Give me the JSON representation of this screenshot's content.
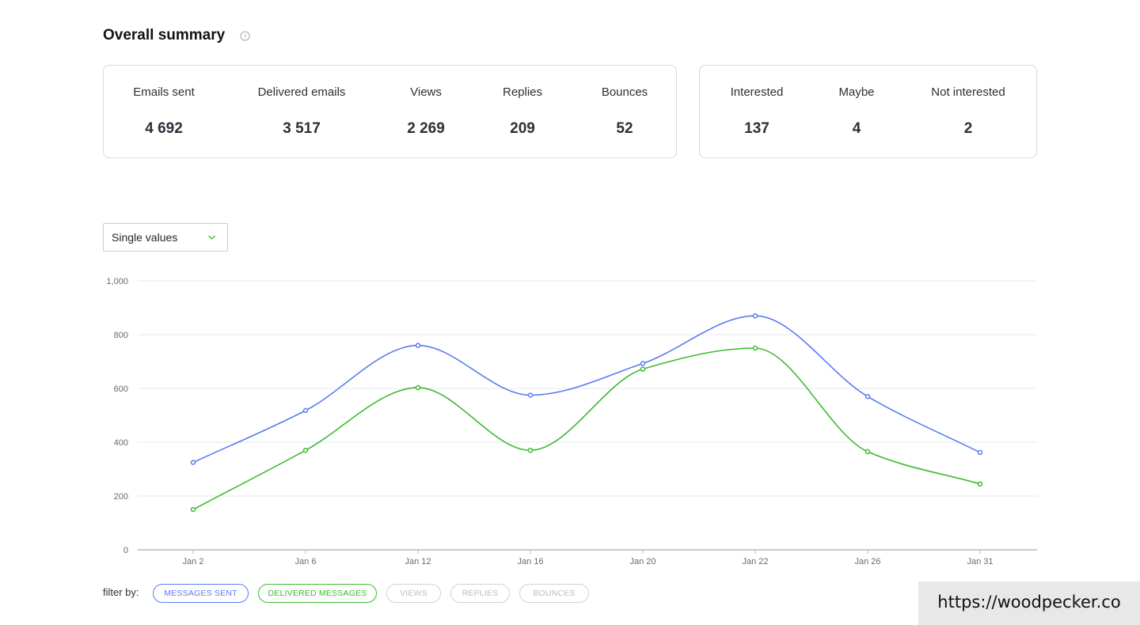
{
  "summary": {
    "title": "Overall summary",
    "left_stats": [
      {
        "label": "Emails sent",
        "value": "4 692"
      },
      {
        "label": "Delivered emails",
        "value": "3 517"
      },
      {
        "label": "Views",
        "value": "2 269"
      },
      {
        "label": "Replies",
        "value": "209"
      },
      {
        "label": "Bounces",
        "value": "52"
      }
    ],
    "right_stats": [
      {
        "label": "Interested",
        "value": "137"
      },
      {
        "label": "Maybe",
        "value": "4"
      },
      {
        "label": "Not interested",
        "value": "2"
      }
    ]
  },
  "dropdown": {
    "selected": "Single values"
  },
  "filters": {
    "label": "filter by:",
    "chips": [
      "MESSAGES SENT",
      "DELIVERED MESSAGES",
      "VIEWS",
      "REPLIES",
      "BOUNCES"
    ]
  },
  "watermark": "https://woodpecker.co",
  "colors": {
    "sent": "#5b7cf0",
    "delivered": "#3dba2e",
    "grid": "#e6e8eb",
    "axis": "#b5b9bf",
    "tick_text": "#666b73"
  },
  "chart_data": {
    "type": "line",
    "categories": [
      "Jan 2",
      "Jan 6",
      "Jan 12",
      "Jan 16",
      "Jan 20",
      "Jan 22",
      "Jan 26",
      "Jan 31"
    ],
    "series": [
      {
        "name": "MESSAGES SENT",
        "values": [
          325,
          518,
          760,
          575,
          693,
          870,
          570,
          362
        ]
      },
      {
        "name": "DELIVERED MESSAGES",
        "values": [
          150,
          370,
          603,
          370,
          672,
          750,
          365,
          245
        ]
      }
    ],
    "ylim": [
      0,
      1000
    ],
    "yticks": [
      "0",
      "200",
      "400",
      "600",
      "800",
      "1,000"
    ],
    "ytick_values": [
      0,
      200,
      400,
      600,
      800,
      1000
    ],
    "grid": true,
    "smooth": true
  }
}
